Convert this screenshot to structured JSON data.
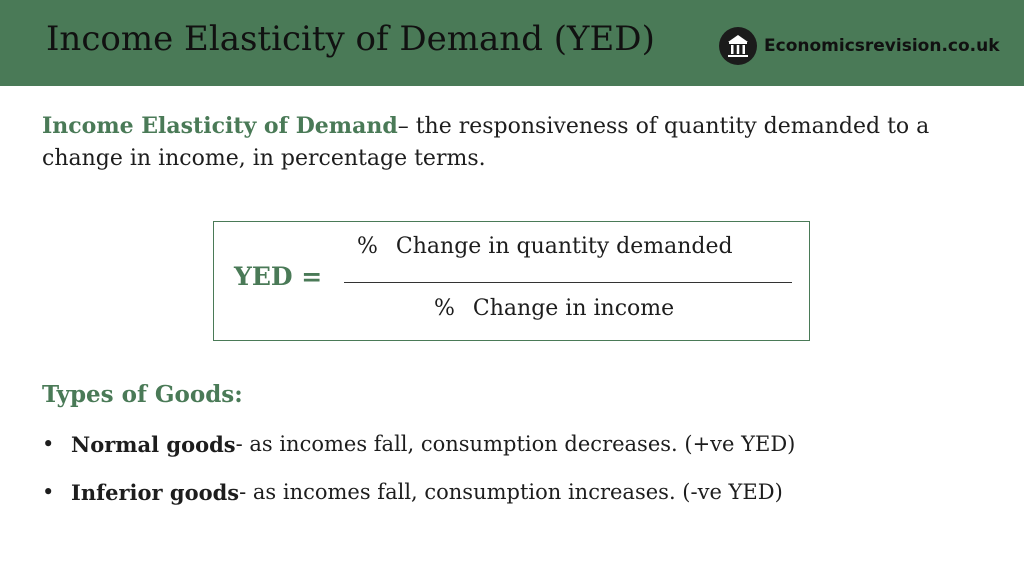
{
  "header": {
    "title": "Income Elasticity of Demand (YED)",
    "brand": "Economicsrevision.co.uk",
    "logo_icon": "pillared-building-icon"
  },
  "definition": {
    "term": "Income Elasticity of Demand",
    "text": "– the responsiveness of quantity demanded to a change in income, in percentage terms."
  },
  "formula": {
    "label": "YED =",
    "numerator_symbol": "%",
    "numerator_text": "Change in quantity demanded",
    "denominator_symbol": "%",
    "denominator_text": "Change in income"
  },
  "types": {
    "heading": "Types of Goods:",
    "items": [
      {
        "bullet": "•",
        "term": "Normal goods",
        "text": "- as incomes fall, consumption decreases. (+ve YED)"
      },
      {
        "bullet": "•",
        "term": "Inferior goods",
        "text": "- as incomes fall, consumption increases. (-ve YED)"
      }
    ]
  },
  "colors": {
    "accent": "#4a7a57",
    "text": "#1d1d1d",
    "background": "#ffffff"
  }
}
